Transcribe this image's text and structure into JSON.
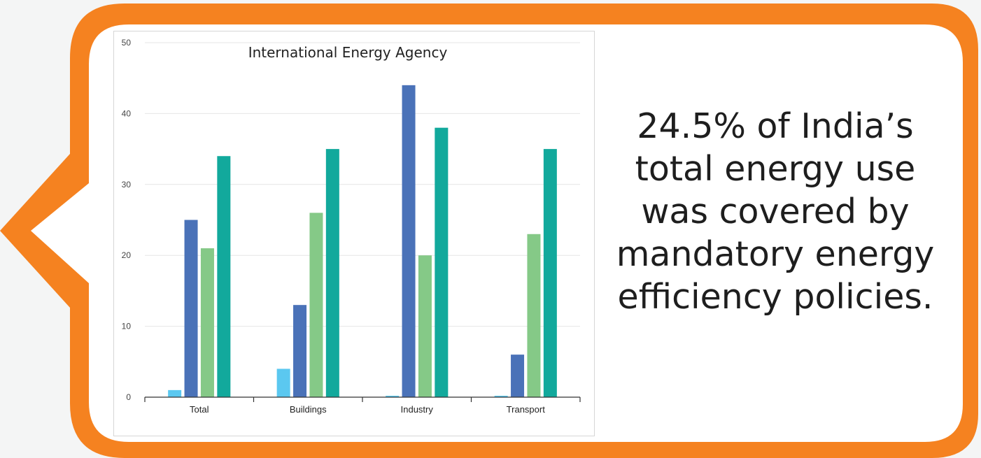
{
  "colors": {
    "frame": "#f58220",
    "inner": "#ffffff",
    "background": "#f4f5f5"
  },
  "callout": {
    "text": "24.5% of India’s total energy use was covered by mandatory energy efficiency policies."
  },
  "chart_data": {
    "type": "bar",
    "title": "International Energy Agency",
    "xlabel": "",
    "ylabel": "",
    "ylim": [
      0,
      50
    ],
    "yticks": [
      0,
      10,
      20,
      30,
      40,
      50
    ],
    "grid": true,
    "legend": "none",
    "categories": [
      "Total",
      "Buildings",
      "Industry",
      "Transport"
    ],
    "series": [
      {
        "color": "#5bc8f0",
        "values": [
          1,
          4,
          0.2,
          0.2
        ]
      },
      {
        "color": "#4a72b8",
        "values": [
          25,
          13,
          44,
          6
        ]
      },
      {
        "color": "#85c987",
        "values": [
          21,
          26,
          20,
          23
        ]
      },
      {
        "color": "#12a99c",
        "values": [
          34,
          35,
          38,
          35
        ]
      }
    ]
  }
}
